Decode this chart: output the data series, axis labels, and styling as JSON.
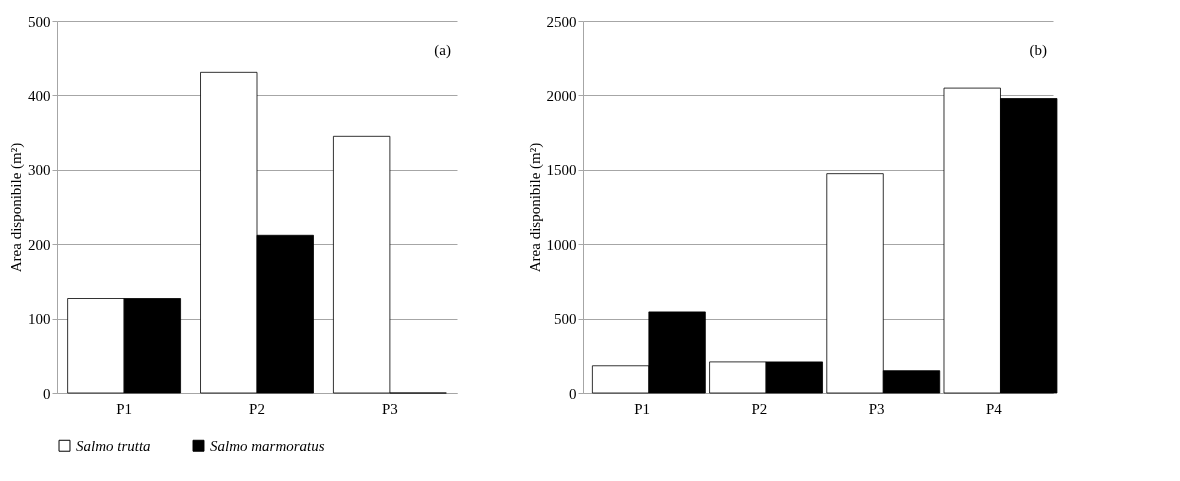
{
  "chart_data": [
    {
      "type": "bar",
      "ylabel": "Area disponibile (m²)",
      "categories": [
        "P1",
        "P2",
        "P3"
      ],
      "series": [
        {
          "name": "Salmo trutta",
          "color": "#ffffff",
          "values": [
            127,
            431,
            345
          ]
        },
        {
          "name": "Salmo marmoratus",
          "color": "#000000",
          "values": [
            127,
            212,
            0
          ]
        }
      ],
      "ylim": [
        0,
        500
      ],
      "yticks": [
        0,
        100,
        200,
        300,
        400,
        500
      ],
      "grid": "y",
      "legend": "bottom",
      "annotations": [
        "(a)"
      ]
    },
    {
      "type": "bar",
      "ylabel": "Area disponibile (m²)",
      "categories": [
        "P1",
        "P2",
        "P3",
        "P4"
      ],
      "series": [
        {
          "name": "Salmo trutta",
          "color": "#ffffff",
          "values": [
            183,
            209,
            1474,
            2049
          ]
        },
        {
          "name": "Salmo marmoratus",
          "color": "#000000",
          "values": [
            545,
            209,
            150,
            1979
          ]
        }
      ],
      "ylim": [
        0,
        2500
      ],
      "yticks": [
        0,
        500,
        1000,
        1500,
        2000,
        2500
      ],
      "grid": "y",
      "legend": "bottom",
      "annotations": [
        "(b)"
      ]
    }
  ]
}
